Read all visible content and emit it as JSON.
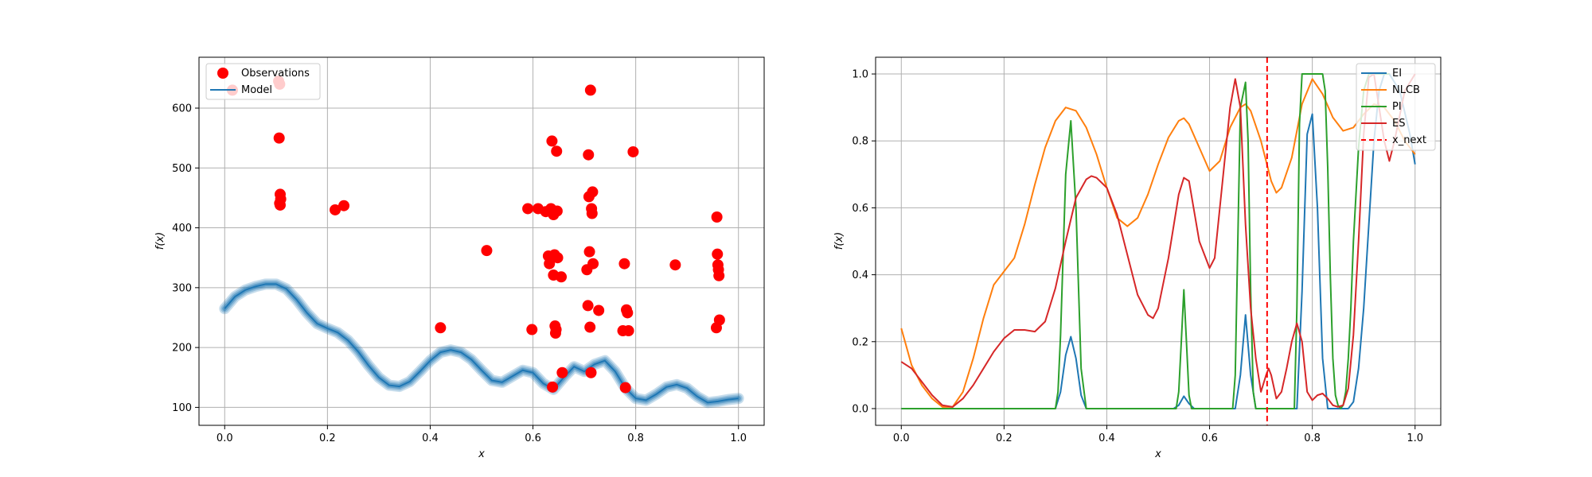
{
  "chart_data": [
    {
      "type": "scatter",
      "xlabel": "x",
      "ylabel": "f(x)",
      "xlim": [
        -0.05,
        1.05
      ],
      "ylim": [
        70,
        685
      ],
      "xticks": [
        0.0,
        0.2,
        0.4,
        0.6,
        0.8,
        1.0
      ],
      "xtick_labels": [
        "0.0",
        "0.2",
        "0.4",
        "0.6",
        "0.8",
        "1.0"
      ],
      "yticks": [
        100,
        200,
        300,
        400,
        500,
        600
      ],
      "ytick_labels": [
        "100",
        "200",
        "300",
        "400",
        "500",
        "600"
      ],
      "grid": true,
      "legend_position": "top-left",
      "legend": [
        {
          "label": "Observations",
          "color": "#ff0000",
          "marker": "circle"
        },
        {
          "label": "Model",
          "color": "#1f77b4",
          "marker": "line"
        }
      ],
      "observations": {
        "name": "Observations",
        "color": "#ff0000",
        "x": [
          0.015,
          0.105,
          0.107,
          0.106,
          0.108,
          0.109,
          0.107,
          0.108,
          0.215,
          0.232,
          0.42,
          0.51,
          0.59,
          0.598,
          0.61,
          0.625,
          0.63,
          0.632,
          0.635,
          0.637,
          0.638,
          0.64,
          0.64,
          0.642,
          0.643,
          0.644,
          0.645,
          0.646,
          0.647,
          0.648,
          0.655,
          0.657,
          0.705,
          0.707,
          0.708,
          0.709,
          0.71,
          0.711,
          0.712,
          0.713,
          0.714,
          0.715,
          0.716,
          0.717,
          0.728,
          0.775,
          0.778,
          0.78,
          0.782,
          0.784,
          0.786,
          0.795,
          0.877,
          0.957,
          0.958,
          0.959,
          0.96,
          0.961,
          0.962,
          0.963
        ],
        "y": [
          630,
          645,
          640,
          550,
          456,
          448,
          441,
          438,
          430,
          437,
          233,
          362,
          432,
          230,
          432,
          427,
          353,
          340,
          432,
          545,
          134,
          422,
          321,
          355,
          236,
          224,
          230,
          528,
          428,
          350,
          318,
          158,
          330,
          270,
          522,
          452,
          360,
          234,
          630,
          158,
          432,
          424,
          460,
          340,
          262,
          228,
          340,
          133,
          263,
          258,
          228,
          527,
          338,
          233,
          418,
          356,
          338,
          330,
          320,
          246
        ],
        "size": 7
      },
      "model": {
        "name": "Model",
        "color": "#1f77b4",
        "x": [
          0.0,
          0.02,
          0.04,
          0.06,
          0.08,
          0.1,
          0.12,
          0.14,
          0.16,
          0.18,
          0.2,
          0.22,
          0.24,
          0.26,
          0.28,
          0.3,
          0.32,
          0.34,
          0.36,
          0.38,
          0.4,
          0.42,
          0.44,
          0.46,
          0.48,
          0.5,
          0.52,
          0.54,
          0.56,
          0.58,
          0.6,
          0.62,
          0.64,
          0.66,
          0.68,
          0.7,
          0.72,
          0.74,
          0.76,
          0.78,
          0.8,
          0.82,
          0.84,
          0.86,
          0.88,
          0.9,
          0.92,
          0.94,
          0.96,
          0.98,
          1.0
        ],
        "y": [
          265,
          285,
          296,
          302,
          306,
          306,
          298,
          280,
          258,
          240,
          232,
          225,
          212,
          193,
          170,
          150,
          137,
          135,
          143,
          160,
          178,
          192,
          196,
          192,
          180,
          162,
          145,
          142,
          152,
          162,
          158,
          140,
          130,
          150,
          168,
          160,
          172,
          178,
          160,
          132,
          115,
          112,
          122,
          134,
          138,
          132,
          118,
          108,
          110,
          113,
          115
        ],
        "bands": [
          {
            "width": 14,
            "opacity": 0.25
          },
          {
            "width": 10,
            "opacity": 0.3
          },
          {
            "width": 6,
            "opacity": 0.45
          }
        ]
      }
    },
    {
      "type": "line",
      "xlabel": "x",
      "ylabel": "f(x)",
      "xlim": [
        -0.05,
        1.05
      ],
      "ylim": [
        -0.05,
        1.05
      ],
      "xticks": [
        0.0,
        0.2,
        0.4,
        0.6,
        0.8,
        1.0
      ],
      "xtick_labels": [
        "0.0",
        "0.2",
        "0.4",
        "0.6",
        "0.8",
        "1.0"
      ],
      "yticks": [
        0.0,
        0.2,
        0.4,
        0.6,
        0.8,
        1.0
      ],
      "ytick_labels": [
        "0.0",
        "0.2",
        "0.4",
        "0.6",
        "0.8",
        "1.0"
      ],
      "grid": true,
      "legend_position": "top-right",
      "legend": [
        {
          "label": "EI",
          "color": "#1f77b4",
          "dash": false
        },
        {
          "label": "NLCB",
          "color": "#ff7f0e",
          "dash": false
        },
        {
          "label": "PI",
          "color": "#2ca02c",
          "dash": false
        },
        {
          "label": "ES",
          "color": "#d62728",
          "dash": false
        },
        {
          "label": "x_next",
          "color": "#ff0000",
          "dash": true
        }
      ],
      "series": [
        {
          "name": "EI",
          "color": "#1f77b4",
          "x": [
            0.0,
            0.3,
            0.31,
            0.32,
            0.33,
            0.34,
            0.35,
            0.36,
            0.53,
            0.54,
            0.55,
            0.56,
            0.57,
            0.65,
            0.66,
            0.67,
            0.68,
            0.69,
            0.77,
            0.78,
            0.79,
            0.8,
            0.81,
            0.82,
            0.83,
            0.86,
            0.87,
            0.88,
            0.89,
            0.9,
            0.91,
            0.92,
            0.93,
            0.94,
            0.95,
            0.97,
            0.99,
            1.0
          ],
          "y": [
            0.0,
            0.0,
            0.05,
            0.16,
            0.215,
            0.15,
            0.04,
            0.0,
            0.0,
            0.01,
            0.037,
            0.015,
            0.0,
            0.0,
            0.1,
            0.28,
            0.1,
            0.0,
            0.0,
            0.35,
            0.82,
            0.88,
            0.6,
            0.15,
            0.0,
            0.0,
            0.0,
            0.02,
            0.12,
            0.3,
            0.55,
            0.8,
            0.95,
            1.0,
            1.0,
            0.95,
            0.82,
            0.73
          ]
        },
        {
          "name": "NLCB",
          "color": "#ff7f0e",
          "x": [
            0.0,
            0.02,
            0.04,
            0.06,
            0.08,
            0.1,
            0.12,
            0.14,
            0.16,
            0.18,
            0.2,
            0.22,
            0.24,
            0.26,
            0.28,
            0.3,
            0.32,
            0.34,
            0.36,
            0.38,
            0.4,
            0.42,
            0.44,
            0.46,
            0.48,
            0.5,
            0.52,
            0.54,
            0.55,
            0.56,
            0.58,
            0.6,
            0.62,
            0.64,
            0.66,
            0.67,
            0.68,
            0.7,
            0.72,
            0.73,
            0.74,
            0.76,
            0.78,
            0.8,
            0.82,
            0.84,
            0.86,
            0.88,
            0.9,
            0.92,
            0.94,
            0.96,
            0.98,
            1.0
          ],
          "y": [
            0.24,
            0.13,
            0.07,
            0.03,
            0.005,
            0.005,
            0.05,
            0.15,
            0.27,
            0.37,
            0.41,
            0.45,
            0.55,
            0.67,
            0.78,
            0.86,
            0.9,
            0.89,
            0.84,
            0.76,
            0.66,
            0.57,
            0.545,
            0.57,
            0.64,
            0.73,
            0.81,
            0.86,
            0.868,
            0.85,
            0.78,
            0.71,
            0.74,
            0.84,
            0.9,
            0.91,
            0.89,
            0.8,
            0.68,
            0.645,
            0.66,
            0.75,
            0.91,
            0.985,
            0.94,
            0.87,
            0.83,
            0.84,
            0.88,
            0.91,
            0.9,
            0.86,
            0.8,
            0.76
          ]
        },
        {
          "name": "PI",
          "color": "#2ca02c",
          "x": [
            0.0,
            0.3,
            0.305,
            0.31,
            0.32,
            0.33,
            0.34,
            0.35,
            0.36,
            0.535,
            0.54,
            0.545,
            0.55,
            0.555,
            0.56,
            0.565,
            0.645,
            0.65,
            0.655,
            0.66,
            0.67,
            0.675,
            0.68,
            0.685,
            0.69,
            0.765,
            0.77,
            0.775,
            0.78,
            0.79,
            0.8,
            0.81,
            0.82,
            0.825,
            0.83,
            0.835,
            0.84,
            0.845,
            0.85,
            0.855,
            0.86,
            0.865,
            0.87,
            0.875,
            0.88,
            0.89,
            0.9,
            0.91,
            0.92,
            0.93,
            0.94,
            0.95
          ],
          "y": [
            0.0,
            0.0,
            0.05,
            0.22,
            0.7,
            0.86,
            0.6,
            0.12,
            0.0,
            0.0,
            0.05,
            0.2,
            0.355,
            0.2,
            0.04,
            0.0,
            0.0,
            0.1,
            0.5,
            0.9,
            0.975,
            0.8,
            0.35,
            0.05,
            0.0,
            0.0,
            0.3,
            0.85,
            1.0,
            1.0,
            1.0,
            1.0,
            1.0,
            0.95,
            0.72,
            0.4,
            0.15,
            0.04,
            0.01,
            0.0,
            0.01,
            0.05,
            0.15,
            0.3,
            0.5,
            0.78,
            0.95,
            1.0,
            1.0,
            1.0,
            1.0,
            1.0
          ]
        },
        {
          "name": "ES",
          "color": "#d62728",
          "x": [
            0.0,
            0.02,
            0.04,
            0.06,
            0.08,
            0.1,
            0.12,
            0.14,
            0.16,
            0.18,
            0.2,
            0.22,
            0.24,
            0.26,
            0.28,
            0.3,
            0.32,
            0.34,
            0.36,
            0.37,
            0.38,
            0.4,
            0.42,
            0.44,
            0.46,
            0.48,
            0.49,
            0.5,
            0.52,
            0.54,
            0.55,
            0.56,
            0.58,
            0.6,
            0.61,
            0.62,
            0.64,
            0.65,
            0.66,
            0.67,
            0.68,
            0.69,
            0.7,
            0.71,
            0.715,
            0.72,
            0.73,
            0.74,
            0.75,
            0.76,
            0.77,
            0.78,
            0.79,
            0.8,
            0.81,
            0.82,
            0.83,
            0.84,
            0.85,
            0.86,
            0.87,
            0.88,
            0.89,
            0.9,
            0.91,
            0.92,
            0.93,
            0.94,
            0.95,
            0.96,
            0.98,
            1.0
          ],
          "y": [
            0.14,
            0.12,
            0.08,
            0.04,
            0.01,
            0.005,
            0.03,
            0.07,
            0.12,
            0.17,
            0.21,
            0.235,
            0.235,
            0.23,
            0.26,
            0.36,
            0.5,
            0.63,
            0.685,
            0.695,
            0.69,
            0.66,
            0.58,
            0.46,
            0.34,
            0.28,
            0.27,
            0.3,
            0.45,
            0.64,
            0.69,
            0.68,
            0.5,
            0.42,
            0.45,
            0.6,
            0.9,
            0.985,
            0.9,
            0.55,
            0.3,
            0.15,
            0.05,
            0.1,
            0.12,
            0.1,
            0.03,
            0.05,
            0.12,
            0.2,
            0.255,
            0.2,
            0.05,
            0.025,
            0.04,
            0.045,
            0.03,
            0.01,
            0.005,
            0.01,
            0.06,
            0.22,
            0.5,
            0.82,
            0.99,
            1.0,
            0.9,
            0.8,
            0.74,
            0.8,
            0.95,
            1.0
          ]
        }
      ],
      "vline": {
        "name": "x_next",
        "x": 0.712,
        "color": "#ff0000",
        "dash": true
      }
    }
  ]
}
